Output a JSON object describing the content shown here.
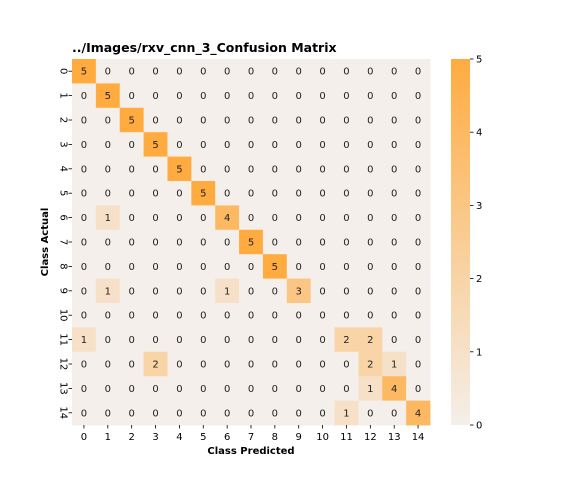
{
  "chart_data": {
    "type": "heatmap",
    "title": "../Images/rxv_cnn_3_Confusion Matrix",
    "xlabel": "Class Predicted",
    "ylabel": "Class Actual",
    "x_categories": [
      "0",
      "1",
      "2",
      "3",
      "4",
      "5",
      "6",
      "7",
      "8",
      "9",
      "10",
      "11",
      "12",
      "13",
      "14"
    ],
    "y_categories": [
      "0",
      "1",
      "2",
      "3",
      "4",
      "5",
      "6",
      "7",
      "8",
      "9",
      "10",
      "11",
      "12",
      "13",
      "14"
    ],
    "values": [
      [
        5,
        0,
        0,
        0,
        0,
        0,
        0,
        0,
        0,
        0,
        0,
        0,
        0,
        0,
        0
      ],
      [
        0,
        5,
        0,
        0,
        0,
        0,
        0,
        0,
        0,
        0,
        0,
        0,
        0,
        0,
        0
      ],
      [
        0,
        0,
        5,
        0,
        0,
        0,
        0,
        0,
        0,
        0,
        0,
        0,
        0,
        0,
        0
      ],
      [
        0,
        0,
        0,
        5,
        0,
        0,
        0,
        0,
        0,
        0,
        0,
        0,
        0,
        0,
        0
      ],
      [
        0,
        0,
        0,
        0,
        5,
        0,
        0,
        0,
        0,
        0,
        0,
        0,
        0,
        0,
        0
      ],
      [
        0,
        0,
        0,
        0,
        0,
        5,
        0,
        0,
        0,
        0,
        0,
        0,
        0,
        0,
        0
      ],
      [
        0,
        1,
        0,
        0,
        0,
        0,
        4,
        0,
        0,
        0,
        0,
        0,
        0,
        0,
        0
      ],
      [
        0,
        0,
        0,
        0,
        0,
        0,
        0,
        5,
        0,
        0,
        0,
        0,
        0,
        0,
        0
      ],
      [
        0,
        0,
        0,
        0,
        0,
        0,
        0,
        0,
        5,
        0,
        0,
        0,
        0,
        0,
        0
      ],
      [
        0,
        1,
        0,
        0,
        0,
        0,
        1,
        0,
        0,
        3,
        0,
        0,
        0,
        0,
        0
      ],
      [
        0,
        0,
        0,
        0,
        0,
        0,
        0,
        0,
        0,
        0,
        0,
        0,
        0,
        0,
        0
      ],
      [
        1,
        0,
        0,
        0,
        0,
        0,
        0,
        0,
        0,
        0,
        0,
        2,
        2,
        0,
        0
      ],
      [
        0,
        0,
        0,
        2,
        0,
        0,
        0,
        0,
        0,
        0,
        0,
        0,
        2,
        1,
        0
      ],
      [
        0,
        0,
        0,
        0,
        0,
        0,
        0,
        0,
        0,
        0,
        0,
        0,
        1,
        4,
        0
      ],
      [
        0,
        0,
        0,
        0,
        0,
        0,
        0,
        0,
        0,
        0,
        0,
        1,
        0,
        0,
        4
      ]
    ],
    "vmin": 0,
    "vmax": 5,
    "color_low": "#f4efea",
    "color_high": "#ffab40",
    "colorbar_ticks": [
      "0",
      "1",
      "2",
      "3",
      "4",
      "5"
    ],
    "annotations": true,
    "grid": false
  }
}
